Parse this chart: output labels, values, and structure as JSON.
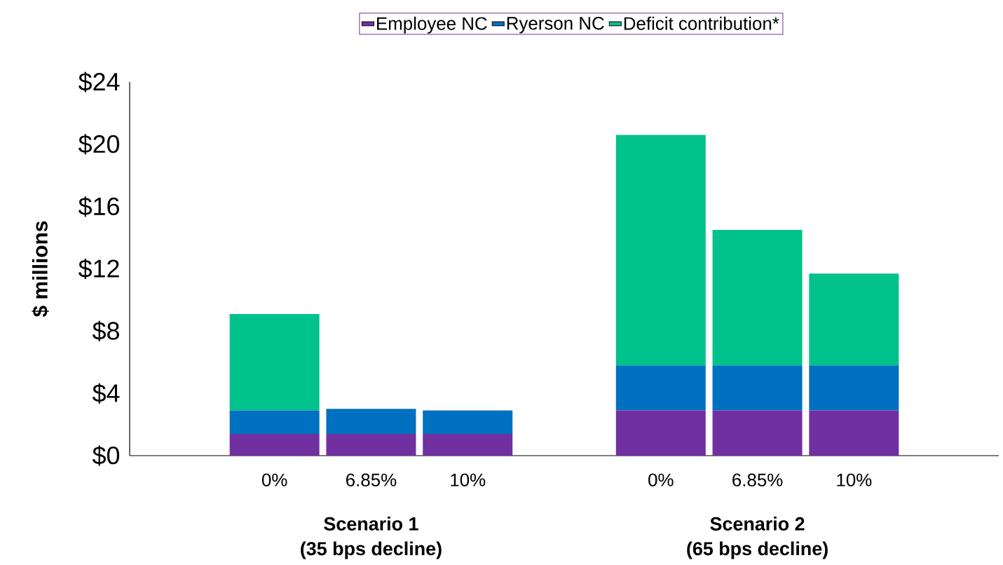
{
  "chart_data": {
    "type": "bar",
    "stacked": true,
    "ylabel": "$ millions",
    "categories": [
      null,
      "0%",
      "6.85%",
      "10%",
      null,
      "0%",
      "6.85%",
      "10%",
      null
    ],
    "series": [
      {
        "name": "Employee NC",
        "color": "#7030a0",
        "values": [
          null,
          1.4,
          1.4,
          1.4,
          null,
          2.9,
          2.9,
          2.9,
          null
        ]
      },
      {
        "name": "Ryerson NC",
        "color": "#0070c0",
        "values": [
          null,
          1.5,
          1.6,
          1.5,
          null,
          2.9,
          2.9,
          2.9,
          null
        ]
      },
      {
        "name": "Deficit contribution*",
        "color": "#00c28a",
        "values": [
          null,
          6.2,
          0,
          0,
          null,
          14.8,
          8.7,
          5.9,
          null
        ]
      }
    ],
    "ylim": [
      0,
      24
    ],
    "yticks": [
      {
        "value": 0,
        "label": "$0"
      },
      {
        "value": 4,
        "label": "$4"
      },
      {
        "value": 8,
        "label": "$8"
      },
      {
        "value": 12,
        "label": "$12"
      },
      {
        "value": 16,
        "label": "$16"
      },
      {
        "value": 20,
        "label": "$20"
      },
      {
        "value": 24,
        "label": "$24"
      }
    ],
    "legend": "top",
    "grid": false,
    "annotations": [
      "Scenario 1",
      "(35 bps decline)",
      "Scenario 2",
      "(65 bps decline)"
    ]
  }
}
